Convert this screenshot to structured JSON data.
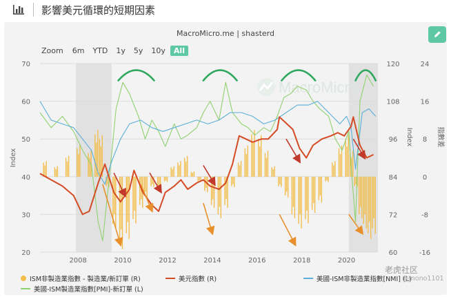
{
  "header": {
    "title": "影響美元循環的短期因素",
    "icon": "bar-chart-icon"
  },
  "source": "MacroMicro.me | shasterd",
  "watermark": "MacroMicro",
  "zoom": {
    "label": "Zoom",
    "options": [
      "6m",
      "YTD",
      "1y",
      "5y",
      "10y",
      "All"
    ],
    "active": "All"
  },
  "footer": {
    "brand": "老虎社区",
    "user": "@mono1101"
  },
  "colors": {
    "accent": "#5ec7a3",
    "bars": "#f2bd4a",
    "dxy": "#d34a23",
    "nmi": "#5aaed8",
    "pmi": "#8fd16e",
    "arrow_red": "#c0392b",
    "arrow_orange": "#e8902e",
    "arc": "#2fa85f"
  },
  "chart_data": {
    "type": "line",
    "x_range": [
      2006.3,
      2021.4
    ],
    "x_ticks": [
      "2008",
      "2010",
      "2012",
      "2014",
      "2016",
      "2018",
      "2020"
    ],
    "left_axis": {
      "label": "Index",
      "ylim": [
        20,
        70
      ],
      "ticks": [
        "70",
        "60",
        "50",
        "40",
        "30",
        "20"
      ]
    },
    "right_axis_1": {
      "label": "Index",
      "ylim": [
        60,
        120
      ],
      "ticks": [
        "120",
        "108",
        "96",
        "84",
        "72",
        "60"
      ]
    },
    "right_axis_2": {
      "label": "指數差",
      "ylim": [
        -16,
        24
      ],
      "ticks": [
        "24",
        "16",
        "8",
        "0",
        "-8",
        "-16"
      ]
    },
    "shaded_regions": [
      [
        2007.9,
        2009.5
      ],
      [
        2020.1,
        2021.4
      ]
    ],
    "series": [
      {
        "name": "ISM非製造業指數 - 製造業/新訂單 (R)",
        "type": "bar",
        "x": [
          2006.5,
          2007.0,
          2007.5,
          2008.0,
          2008.5,
          2008.8,
          2009.0,
          2009.3,
          2009.6,
          2009.9,
          2010.2,
          2010.5,
          2010.8,
          2011.0,
          2011.3,
          2011.6,
          2011.9,
          2012.2,
          2012.5,
          2012.8,
          2013.1,
          2013.4,
          2013.7,
          2014.0,
          2014.3,
          2014.6,
          2014.9,
          2015.2,
          2015.5,
          2015.8,
          2016.1,
          2016.4,
          2016.7,
          2017.0,
          2017.3,
          2017.6,
          2017.9,
          2018.2,
          2018.5,
          2018.8,
          2019.1,
          2019.4,
          2019.7,
          2020.0,
          2020.2,
          2020.4,
          2020.6,
          2020.8,
          2021.0,
          2021.2
        ],
        "y": [
          3,
          2,
          4,
          6,
          5,
          9,
          8,
          -2,
          -10,
          -14,
          -12,
          -9,
          -6,
          -4,
          -2,
          -3,
          -1,
          2,
          3,
          4,
          1,
          -1,
          -3,
          -6,
          -8,
          -6,
          -2,
          3,
          6,
          9,
          8,
          5,
          2,
          -2,
          -4,
          -8,
          -10,
          -9,
          -7,
          -5,
          -1,
          3,
          6,
          8,
          5,
          -2,
          -8,
          -10,
          -12,
          -11
        ]
      },
      {
        "name": "美元指數 (R)",
        "type": "line",
        "x": [
          2006.3,
          2006.8,
          2007.3,
          2007.8,
          2008.2,
          2008.5,
          2008.9,
          2009.2,
          2009.6,
          2009.9,
          2010.3,
          2010.5,
          2010.9,
          2011.3,
          2011.6,
          2011.9,
          2012.3,
          2012.6,
          2012.9,
          2013.3,
          2013.6,
          2013.9,
          2014.3,
          2014.6,
          2014.9,
          2015.2,
          2015.5,
          2015.8,
          2016.2,
          2016.5,
          2016.9,
          2017.0,
          2017.3,
          2017.6,
          2017.9,
          2018.2,
          2018.5,
          2018.9,
          2019.3,
          2019.6,
          2019.9,
          2020.2,
          2020.3,
          2020.6,
          2020.9,
          2021.2
        ],
        "y": [
          85,
          83,
          81,
          78,
          72,
          73,
          82,
          88,
          79,
          76,
          80,
          86,
          79,
          75,
          73,
          79,
          81,
          83,
          80,
          82,
          83,
          81,
          80,
          82,
          88,
          97,
          96,
          95,
          96,
          96,
          99,
          103,
          101,
          99,
          93,
          90,
          94,
          96,
          97,
          98,
          97,
          100,
          103,
          94,
          90,
          91
        ]
      },
      {
        "name": "美國-ISM非製造業指數[NMI] (L)",
        "type": "line",
        "x": [
          2006.3,
          2006.8,
          2007.3,
          2007.8,
          2008.2,
          2008.6,
          2008.9,
          2009.2,
          2009.5,
          2009.9,
          2010.3,
          2010.8,
          2011.3,
          2011.8,
          2012.3,
          2012.8,
          2013.3,
          2013.8,
          2014.3,
          2014.8,
          2015.3,
          2015.8,
          2016.3,
          2016.8,
          2017.3,
          2017.8,
          2018.3,
          2018.7,
          2019.2,
          2019.7,
          2020.0,
          2020.2,
          2020.4,
          2020.7,
          2021.0,
          2021.3
        ],
        "y": [
          60,
          55,
          54,
          53,
          50,
          47,
          41,
          38,
          44,
          50,
          54,
          55,
          53,
          52,
          53,
          54,
          55,
          54,
          55,
          57,
          57,
          56,
          54,
          55,
          57,
          59,
          59,
          60,
          57,
          54,
          56,
          53,
          42,
          57,
          58,
          56
        ]
      },
      {
        "name": "美國-ISM製造業指數[PMI]-新訂單 (L)",
        "type": "line",
        "x": [
          2006.3,
          2006.8,
          2007.3,
          2007.8,
          2008.2,
          2008.6,
          2008.9,
          2009.1,
          2009.4,
          2009.7,
          2010.0,
          2010.3,
          2010.7,
          2011.0,
          2011.3,
          2011.6,
          2011.9,
          2012.3,
          2012.6,
          2012.9,
          2013.3,
          2013.6,
          2013.9,
          2014.3,
          2014.6,
          2014.9,
          2015.3,
          2015.6,
          2015.9,
          2016.3,
          2016.6,
          2016.9,
          2017.2,
          2017.5,
          2017.8,
          2018.2,
          2018.5,
          2018.8,
          2019.2,
          2019.5,
          2019.8,
          2020.1,
          2020.2,
          2020.4,
          2020.6,
          2020.9,
          2021.2
        ],
        "y": [
          57,
          53,
          56,
          52,
          47,
          43,
          28,
          23,
          40,
          58,
          65,
          62,
          56,
          50,
          55,
          52,
          48,
          54,
          50,
          51,
          53,
          57,
          60,
          55,
          65,
          57,
          54,
          53,
          51,
          53,
          52,
          56,
          61,
          62,
          64,
          63,
          60,
          58,
          56,
          50,
          47,
          52,
          43,
          28,
          60,
          67,
          64
        ]
      }
    ],
    "legend_position": "bottom"
  }
}
